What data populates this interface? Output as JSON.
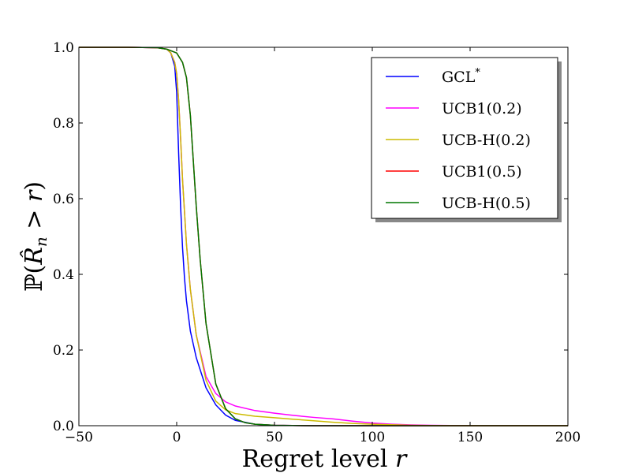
{
  "chart_data": {
    "type": "line",
    "xlabel": "Regret level r",
    "ylabel": "ℙ(R̂ₙ > r)",
    "xlim": [
      -50,
      200
    ],
    "ylim": [
      0.0,
      1.0
    ],
    "x_ticks": [
      "−50",
      "0",
      "50",
      "100",
      "150",
      "200"
    ],
    "y_ticks": [
      "0.0",
      "0.2",
      "0.4",
      "0.6",
      "0.8",
      "1.0"
    ],
    "grid": false,
    "legend_position": "top-right",
    "series": [
      {
        "name": "GCL*",
        "color": "#0000ff",
        "points": [
          [
            -50,
            1.0
          ],
          [
            -25,
            1.0
          ],
          [
            -10,
            0.999
          ],
          [
            -5,
            0.995
          ],
          [
            -3,
            0.985
          ],
          [
            -1,
            0.95
          ],
          [
            0,
            0.88
          ],
          [
            1,
            0.72
          ],
          [
            2,
            0.58
          ],
          [
            3,
            0.47
          ],
          [
            4,
            0.39
          ],
          [
            5,
            0.33
          ],
          [
            7,
            0.25
          ],
          [
            10,
            0.18
          ],
          [
            15,
            0.1
          ],
          [
            20,
            0.055
          ],
          [
            25,
            0.028
          ],
          [
            30,
            0.014
          ],
          [
            40,
            0.004
          ],
          [
            50,
            0.001
          ],
          [
            70,
            0.0
          ],
          [
            200,
            0.0
          ]
        ]
      },
      {
        "name": "UCB1(0.2)",
        "color": "#ff00ff",
        "points": [
          [
            -50,
            1.0
          ],
          [
            -25,
            1.0
          ],
          [
            -10,
            0.999
          ],
          [
            -5,
            0.995
          ],
          [
            -3,
            0.985
          ],
          [
            -1,
            0.96
          ],
          [
            0,
            0.93
          ],
          [
            1,
            0.86
          ],
          [
            2,
            0.76
          ],
          [
            3,
            0.65
          ],
          [
            5,
            0.48
          ],
          [
            7,
            0.36
          ],
          [
            10,
            0.24
          ],
          [
            15,
            0.13
          ],
          [
            20,
            0.085
          ],
          [
            25,
            0.063
          ],
          [
            30,
            0.052
          ],
          [
            40,
            0.04
          ],
          [
            50,
            0.033
          ],
          [
            60,
            0.027
          ],
          [
            70,
            0.022
          ],
          [
            80,
            0.018
          ],
          [
            90,
            0.012
          ],
          [
            100,
            0.007
          ],
          [
            110,
            0.004
          ],
          [
            120,
            0.002
          ],
          [
            130,
            0.001
          ],
          [
            150,
            0.0
          ],
          [
            200,
            0.0
          ]
        ]
      },
      {
        "name": "UCB-H(0.2)",
        "color": "#ccbb00",
        "points": [
          [
            -50,
            1.0
          ],
          [
            -25,
            1.0
          ],
          [
            -10,
            0.999
          ],
          [
            -5,
            0.995
          ],
          [
            -3,
            0.985
          ],
          [
            -1,
            0.96
          ],
          [
            0,
            0.93
          ],
          [
            1,
            0.86
          ],
          [
            2,
            0.76
          ],
          [
            3,
            0.65
          ],
          [
            5,
            0.48
          ],
          [
            7,
            0.36
          ],
          [
            10,
            0.24
          ],
          [
            15,
            0.12
          ],
          [
            20,
            0.065
          ],
          [
            25,
            0.042
          ],
          [
            30,
            0.032
          ],
          [
            40,
            0.025
          ],
          [
            50,
            0.021
          ],
          [
            60,
            0.017
          ],
          [
            70,
            0.013
          ],
          [
            80,
            0.009
          ],
          [
            90,
            0.006
          ],
          [
            100,
            0.004
          ],
          [
            120,
            0.001
          ],
          [
            140,
            0.0
          ],
          [
            200,
            0.0
          ]
        ]
      },
      {
        "name": "UCB1(0.5)",
        "color": "#ff0000",
        "points": [
          [
            -50,
            1.0
          ],
          [
            -25,
            1.0
          ],
          [
            -10,
            0.999
          ],
          [
            -5,
            0.995
          ],
          [
            0,
            0.985
          ],
          [
            3,
            0.96
          ],
          [
            5,
            0.92
          ],
          [
            7,
            0.82
          ],
          [
            8,
            0.74
          ],
          [
            10,
            0.58
          ],
          [
            12,
            0.44
          ],
          [
            15,
            0.27
          ],
          [
            20,
            0.11
          ],
          [
            25,
            0.045
          ],
          [
            30,
            0.018
          ],
          [
            35,
            0.008
          ],
          [
            40,
            0.004
          ],
          [
            50,
            0.001
          ],
          [
            70,
            0.0
          ],
          [
            200,
            0.0
          ]
        ]
      },
      {
        "name": "UCB-H(0.5)",
        "color": "#007700",
        "points": [
          [
            -50,
            1.0
          ],
          [
            -25,
            1.0
          ],
          [
            -10,
            0.999
          ],
          [
            -5,
            0.995
          ],
          [
            0,
            0.985
          ],
          [
            3,
            0.96
          ],
          [
            5,
            0.92
          ],
          [
            7,
            0.82
          ],
          [
            8,
            0.74
          ],
          [
            10,
            0.58
          ],
          [
            12,
            0.44
          ],
          [
            15,
            0.27
          ],
          [
            20,
            0.11
          ],
          [
            25,
            0.045
          ],
          [
            30,
            0.018
          ],
          [
            35,
            0.008
          ],
          [
            40,
            0.004
          ],
          [
            50,
            0.001
          ],
          [
            70,
            0.0
          ],
          [
            200,
            0.0
          ]
        ]
      }
    ]
  }
}
